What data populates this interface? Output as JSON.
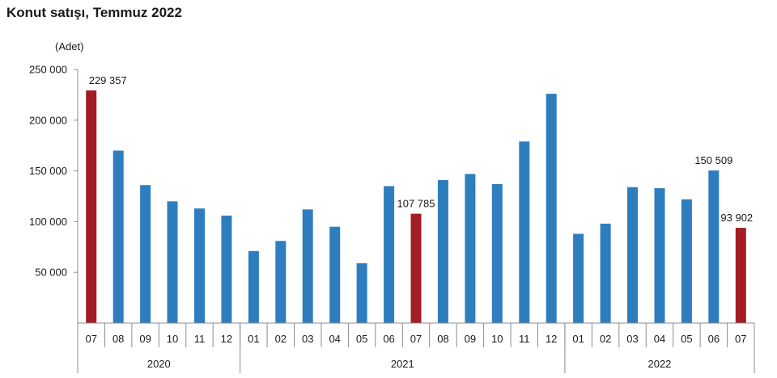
{
  "chart_data": {
    "type": "bar",
    "title": "Konut satışı, Temmuz 2022",
    "ylabel": "(Adet)",
    "xlabel": "",
    "ylim": [
      0,
      250000
    ],
    "yticks": [
      "250 000",
      "200 000",
      "150 000",
      "100 000",
      "50 000"
    ],
    "ytick_values": [
      250000,
      200000,
      150000,
      100000,
      50000
    ],
    "categories": [
      "07",
      "08",
      "09",
      "10",
      "11",
      "12",
      "01",
      "02",
      "03",
      "04",
      "05",
      "06",
      "07",
      "08",
      "09",
      "10",
      "11",
      "12",
      "01",
      "02",
      "03",
      "04",
      "05",
      "06",
      "07"
    ],
    "years": [
      {
        "label": "2020",
        "count": 6
      },
      {
        "label": "2021",
        "count": 12
      },
      {
        "label": "2022",
        "count": 7
      }
    ],
    "values": [
      229357,
      170000,
      136000,
      120000,
      113000,
      106000,
      71000,
      81000,
      112000,
      95000,
      59000,
      135000,
      107785,
      141000,
      147000,
      137000,
      179000,
      226000,
      88000,
      98000,
      134000,
      133000,
      122000,
      150509,
      93902
    ],
    "highlight": [
      true,
      false,
      false,
      false,
      false,
      false,
      false,
      false,
      false,
      false,
      false,
      false,
      true,
      false,
      false,
      false,
      false,
      false,
      false,
      false,
      false,
      false,
      false,
      false,
      true
    ],
    "data_labels": [
      {
        "index": 0,
        "text": "229 357"
      },
      {
        "index": 12,
        "text": "107 785"
      },
      {
        "index": 23,
        "text": "150 509"
      },
      {
        "index": 24,
        "text": "93 902"
      }
    ],
    "grid": false,
    "legend": "none",
    "colors": {
      "normal": "#2e7ebf",
      "highlight": "#a31d25"
    }
  }
}
